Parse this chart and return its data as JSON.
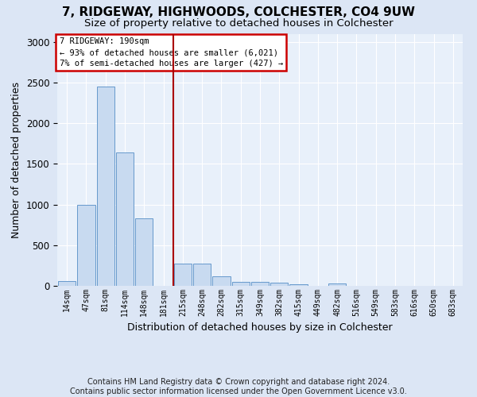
{
  "title1": "7, RIDGEWAY, HIGHWOODS, COLCHESTER, CO4 9UW",
  "title2": "Size of property relative to detached houses in Colchester",
  "xlabel": "Distribution of detached houses by size in Colchester",
  "ylabel": "Number of detached properties",
  "footnote": "Contains HM Land Registry data © Crown copyright and database right 2024.\nContains public sector information licensed under the Open Government Licence v3.0.",
  "categories": [
    "14sqm",
    "47sqm",
    "81sqm",
    "114sqm",
    "148sqm",
    "181sqm",
    "215sqm",
    "248sqm",
    "282sqm",
    "315sqm",
    "349sqm",
    "382sqm",
    "415sqm",
    "449sqm",
    "482sqm",
    "516sqm",
    "549sqm",
    "583sqm",
    "616sqm",
    "650sqm",
    "683sqm"
  ],
  "values": [
    55,
    1000,
    2450,
    1640,
    830,
    0,
    270,
    270,
    120,
    50,
    50,
    35,
    20,
    0,
    25,
    0,
    0,
    0,
    0,
    0,
    0
  ],
  "bar_color": "#c8daf0",
  "bar_edge_color": "#6699cc",
  "vline_x": 5.5,
  "vline_color": "#aa0000",
  "annotation_text1": "7 RIDGEWAY: 190sqm",
  "annotation_text2": "← 93% of detached houses are smaller (6,021)",
  "annotation_text3": "7% of semi-detached houses are larger (427) →",
  "annotation_box_color": "#cc0000",
  "annotation_fill": "white",
  "ylim": [
    0,
    3100
  ],
  "bg_color": "#dce6f5",
  "plot_bg_color": "#e8f0fa",
  "grid_color": "white",
  "title1_fontsize": 11,
  "title2_fontsize": 9.5,
  "xlabel_fontsize": 9,
  "ylabel_fontsize": 9,
  "footnote_fontsize": 7
}
